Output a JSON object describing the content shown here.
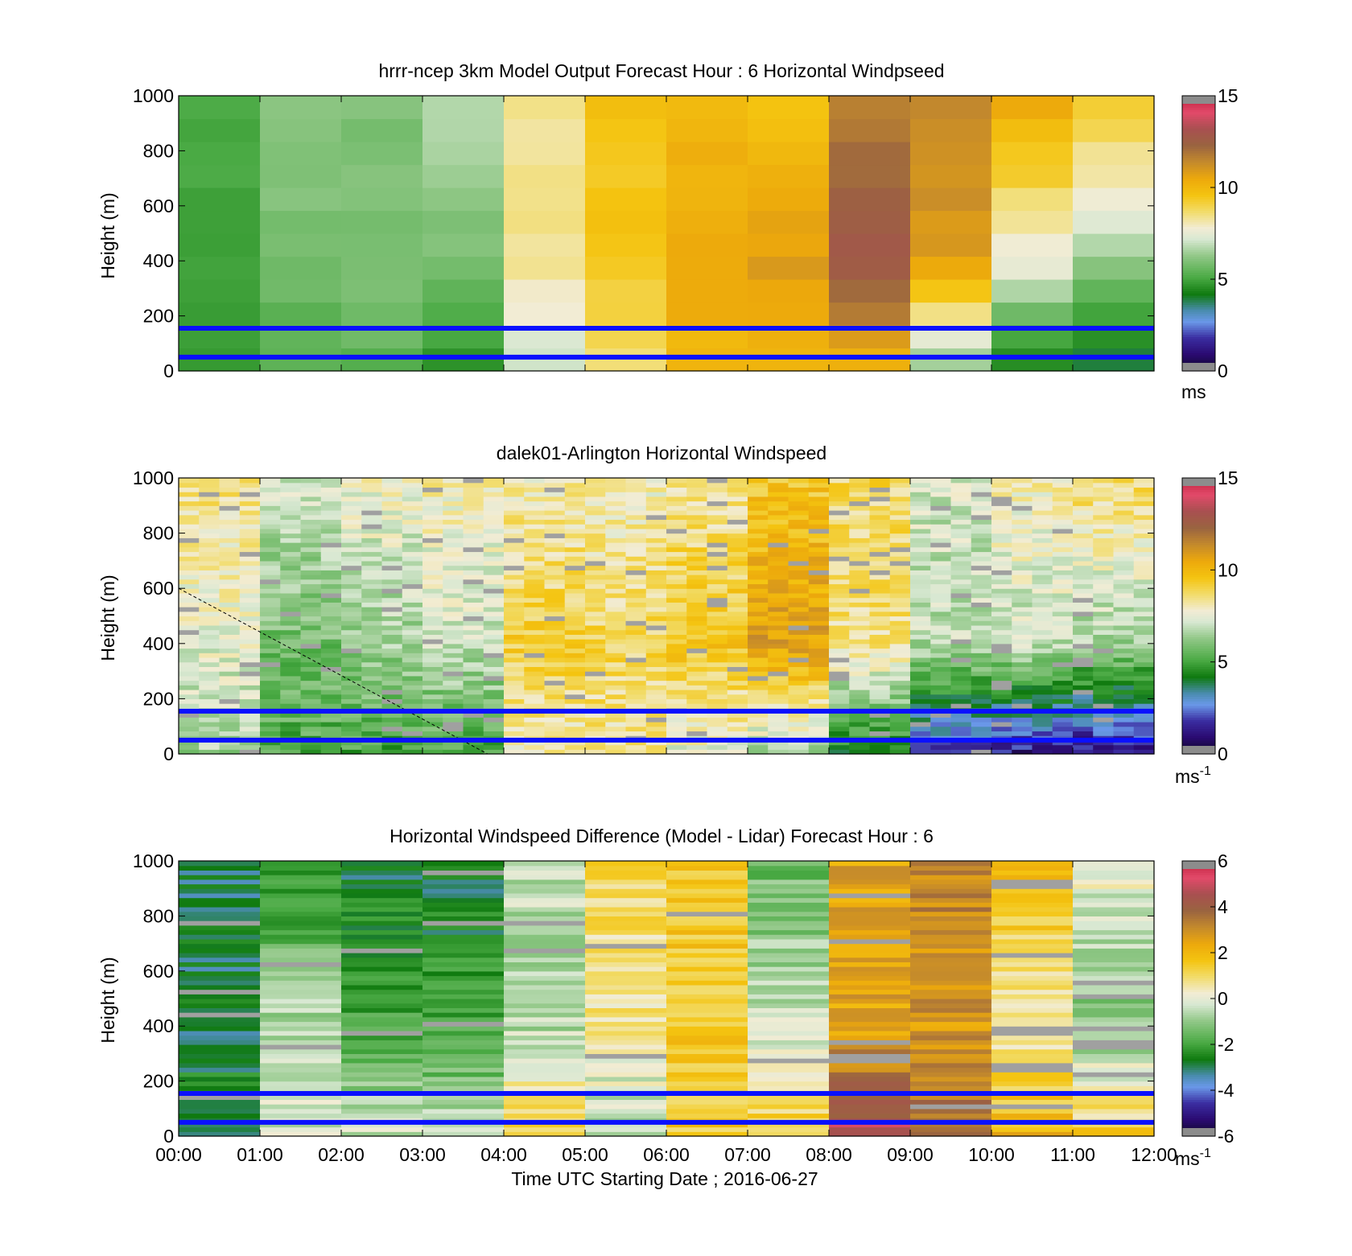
{
  "figure": {
    "xlabel": "Time UTC  Starting Date ; 2016-06-27",
    "x_tick_labels": [
      "00:00",
      "01:00",
      "02:00",
      "03:00",
      "04:00",
      "05:00",
      "06:00",
      "07:00",
      "08:00",
      "09:00",
      "10:00",
      "11:00",
      "12:00"
    ]
  },
  "chart_data": [
    {
      "type": "heatmap",
      "title": "hrrr-ncep 3km Model Output   Forecast Hour : 6 Horizontal Windpseed",
      "ylabel": "Height (m)",
      "ylim": [
        0,
        1000
      ],
      "y_ticks": [
        "0",
        "200",
        "400",
        "600",
        "800",
        "1000"
      ],
      "xlim": [
        "00:00",
        "12:00"
      ],
      "colorbar": {
        "ticks": [
          "0",
          "5",
          "10",
          "15"
        ],
        "unit": "ms",
        "unit_sup": "",
        "range": [
          0,
          15
        ]
      },
      "x_hours": [
        0,
        1,
        2,
        3,
        4,
        5,
        6,
        7,
        8,
        9,
        10,
        11
      ],
      "heights_m": [
        0,
        50,
        100,
        150,
        200,
        250,
        300,
        350,
        400,
        450,
        500,
        550,
        600,
        650,
        700,
        750,
        800,
        850,
        900,
        950,
        1000
      ],
      "resolution": "model",
      "columns": [
        {
          "top": 5.0,
          "mid": 5.0,
          "low": 5.0
        },
        {
          "top": 6.2,
          "mid": 5.8,
          "low": 5.2
        },
        {
          "top": 6.0,
          "mid": 5.9,
          "low": 5.4
        },
        {
          "top": 6.8,
          "mid": 5.8,
          "low": 4.5
        },
        {
          "top": 8.3,
          "mid": 8.4,
          "low": 7.0
        },
        {
          "top": 9.6,
          "mid": 9.5,
          "low": 8.5
        },
        {
          "top": 10.0,
          "mid": 10.5,
          "low": 10.0
        },
        {
          "top": 9.6,
          "mid": 10.8,
          "low": 10.2
        },
        {
          "top": 11.4,
          "mid": 13.0,
          "low": 10.0
        },
        {
          "top": 11.5,
          "mid": 10.9,
          "low": 6.0
        },
        {
          "top": 10.6,
          "mid": 7.6,
          "low": 4.0
        },
        {
          "top": 9.5,
          "mid": 6.5,
          "low": 3.5
        }
      ],
      "reference_lines_m": [
        155,
        50
      ]
    },
    {
      "type": "heatmap",
      "title": "dalek01-Arlington  Horizontal Windspeed",
      "ylabel": "Height (m)",
      "ylim": [
        0,
        1000
      ],
      "y_ticks": [
        "0",
        "200",
        "400",
        "600",
        "800",
        "1000"
      ],
      "xlim": [
        "00:00",
        "12:00"
      ],
      "colorbar": {
        "ticks": [
          "0",
          "5",
          "10",
          "15"
        ],
        "unit": "ms",
        "unit_sup": "-1",
        "range": [
          0,
          15
        ]
      },
      "x_hours": [
        0,
        1,
        2,
        3,
        4,
        5,
        6,
        7,
        8,
        9,
        10,
        11
      ],
      "heights_m": [
        0,
        50,
        100,
        150,
        200,
        250,
        300,
        350,
        400,
        450,
        500,
        550,
        600,
        650,
        700,
        750,
        800,
        850,
        900,
        950,
        1000
      ],
      "resolution": "lidar",
      "columns": [
        {
          "top": 8.5,
          "mid": 7.5,
          "low": 6.5
        },
        {
          "top": 7.2,
          "mid": 5.8,
          "low": 5.2
        },
        {
          "top": 7.8,
          "mid": 6.4,
          "low": 5.0
        },
        {
          "top": 8.0,
          "mid": 7.0,
          "low": 5.0
        },
        {
          "top": 8.0,
          "mid": 9.2,
          "low": 8.0
        },
        {
          "top": 7.8,
          "mid": 8.9,
          "low": 8.2
        },
        {
          "top": 8.2,
          "mid": 9.5,
          "low": 7.5
        },
        {
          "top": 9.4,
          "mid": 10.8,
          "low": 6.5
        },
        {
          "top": 8.8,
          "mid": 8.5,
          "low": 4.0
        },
        {
          "top": 7.2,
          "mid": 6.8,
          "low": 1.8
        },
        {
          "top": 8.0,
          "mid": 7.0,
          "low": 1.2
        },
        {
          "top": 8.8,
          "mid": 6.5,
          "low": 1.0
        }
      ],
      "reference_lines_m": [
        155,
        50
      ]
    },
    {
      "type": "heatmap",
      "title": "Horizontal Windspeed Difference (Model - Lidar) Forecast Hour : 6",
      "ylabel": "Height (m)",
      "ylim": [
        0,
        1000
      ],
      "y_ticks": [
        "0",
        "200",
        "400",
        "600",
        "800",
        "1000"
      ],
      "xlim": [
        "00:00",
        "12:00"
      ],
      "colorbar": {
        "ticks": [
          "-6",
          "-4",
          "-2",
          "0",
          "2",
          "4",
          "6"
        ],
        "unit": "ms",
        "unit_sup": "-1",
        "range": [
          -6,
          6
        ]
      },
      "x_hours": [
        0,
        1,
        2,
        3,
        4,
        5,
        6,
        7,
        8,
        9,
        10,
        11
      ],
      "heights_m": [
        0,
        50,
        100,
        150,
        200,
        250,
        300,
        350,
        400,
        450,
        500,
        550,
        600,
        650,
        700,
        750,
        800,
        850,
        900,
        950,
        1000
      ],
      "resolution": "lidar",
      "columns": [
        {
          "top": -3.0,
          "mid": -2.8,
          "low": -2.5
        },
        {
          "top": -2.5,
          "mid": -0.5,
          "low": -0.3
        },
        {
          "top": -2.8,
          "mid": -1.8,
          "low": -0.3
        },
        {
          "top": -3.0,
          "mid": -2.0,
          "low": -0.5
        },
        {
          "top": -0.5,
          "mid": -0.6,
          "low": 1.5
        },
        {
          "top": 1.0,
          "mid": 0.6,
          "low": -0.8
        },
        {
          "top": 1.5,
          "mid": 1.5,
          "low": 1.5
        },
        {
          "top": -1.5,
          "mid": -0.3,
          "low": 1.5
        },
        {
          "top": 2.5,
          "mid": 2.5,
          "low": 4.8
        },
        {
          "top": 3.2,
          "mid": 2.8,
          "low": 3.8
        },
        {
          "top": 1.8,
          "mid": 0.6,
          "low": 2.0
        },
        {
          "top": 0.2,
          "mid": -1.2,
          "low": 1.5
        }
      ],
      "reference_lines_m": [
        155,
        50
      ]
    }
  ]
}
